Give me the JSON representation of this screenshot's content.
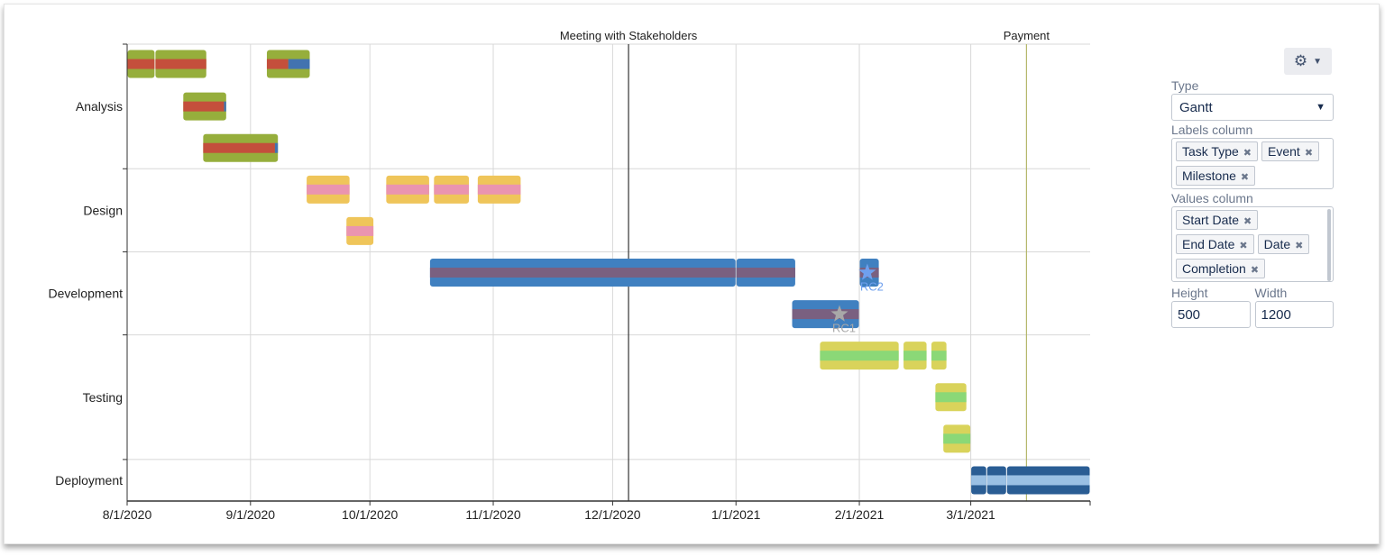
{
  "chart_data": {
    "type": "gantt",
    "xlim": [
      "2020-08-01",
      "2021-03-31"
    ],
    "x_ticks": [
      "8/1/2020",
      "9/1/2020",
      "10/1/2020",
      "11/1/2020",
      "12/1/2020",
      "1/1/2021",
      "2/1/2021",
      "3/1/2021"
    ],
    "x_tick_dates": [
      "2020-08-01",
      "2020-09-01",
      "2020-10-01",
      "2020-11-01",
      "2020-12-01",
      "2021-01-01",
      "2021-02-01",
      "2021-03-01"
    ],
    "grid": true,
    "categories": [
      {
        "name": "Analysis",
        "lanes": 3,
        "color": "#96ae3c",
        "inner": "#c44f3c",
        "remain": "#4273b0"
      },
      {
        "name": "Design",
        "lanes": 2,
        "color": "#efc55a",
        "inner": "#ea94b0",
        "remain": "#ea94b0"
      },
      {
        "name": "Development",
        "lanes": 2,
        "color": "#4080c0",
        "inner": "#7a6080",
        "remain": "#7a6080"
      },
      {
        "name": "Testing",
        "lanes": 3,
        "color": "#d9d35b",
        "inner": "#8bd877",
        "remain": "#8bd877"
      },
      {
        "name": "Deployment",
        "lanes": 1,
        "color": "#2a5d94",
        "inner": "#9ac0e4",
        "remain": "#9ac0e4"
      }
    ],
    "tasks": [
      {
        "cat": 0,
        "lane": 0,
        "start": "2020-08-01",
        "end": "2020-08-08",
        "completion": 1
      },
      {
        "cat": 0,
        "lane": 0,
        "start": "2020-08-08",
        "end": "2020-08-21",
        "completion": 1
      },
      {
        "cat": 0,
        "lane": 0,
        "start": "2020-09-05",
        "end": "2020-09-16",
        "completion": 0.5
      },
      {
        "cat": 0,
        "lane": 1,
        "start": "2020-08-15",
        "end": "2020-08-26",
        "completion": 0.95
      },
      {
        "cat": 0,
        "lane": 2,
        "start": "2020-08-20",
        "end": "2020-09-08",
        "completion": 0.96
      },
      {
        "cat": 1,
        "lane": 0,
        "start": "2020-09-15",
        "end": "2020-09-26",
        "completion": 1
      },
      {
        "cat": 1,
        "lane": 0,
        "start": "2020-10-05",
        "end": "2020-10-16",
        "completion": 1
      },
      {
        "cat": 1,
        "lane": 0,
        "start": "2020-10-17",
        "end": "2020-10-26",
        "completion": 1
      },
      {
        "cat": 1,
        "lane": 0,
        "start": "2020-10-28",
        "end": "2020-11-08",
        "completion": 1
      },
      {
        "cat": 1,
        "lane": 1,
        "start": "2020-09-25",
        "end": "2020-10-02",
        "completion": 1
      },
      {
        "cat": 2,
        "lane": 0,
        "start": "2020-10-16",
        "end": "2021-01-01",
        "completion": 1
      },
      {
        "cat": 2,
        "lane": 0,
        "start": "2021-01-01",
        "end": "2021-01-16",
        "completion": 1
      },
      {
        "cat": 2,
        "lane": 0,
        "start": "2021-02-01",
        "end": "2021-02-06",
        "completion": 1
      },
      {
        "cat": 2,
        "lane": 1,
        "start": "2021-01-15",
        "end": "2021-02-01",
        "completion": 1
      },
      {
        "cat": 3,
        "lane": 0,
        "start": "2021-01-22",
        "end": "2021-02-11",
        "completion": 1
      },
      {
        "cat": 3,
        "lane": 0,
        "start": "2021-02-12",
        "end": "2021-02-18",
        "completion": 1
      },
      {
        "cat": 3,
        "lane": 0,
        "start": "2021-02-19",
        "end": "2021-02-23",
        "completion": 1
      },
      {
        "cat": 3,
        "lane": 1,
        "start": "2021-02-20",
        "end": "2021-02-28",
        "completion": 1
      },
      {
        "cat": 3,
        "lane": 2,
        "start": "2021-02-22",
        "end": "2021-03-01",
        "completion": 1
      },
      {
        "cat": 4,
        "lane": 0,
        "start": "2021-03-01",
        "end": "2021-03-05",
        "completion": 1
      },
      {
        "cat": 4,
        "lane": 0,
        "start": "2021-03-05",
        "end": "2021-03-10",
        "completion": 1
      },
      {
        "cat": 4,
        "lane": 0,
        "start": "2021-03-10",
        "end": "2021-03-31",
        "completion": 1
      }
    ],
    "milestones": [
      {
        "label": "RC2",
        "date": "2021-02-03",
        "cat": 2,
        "lane": 0,
        "color": "#6fa0ee"
      },
      {
        "label": "RC1",
        "date": "2021-01-27",
        "cat": 2,
        "lane": 1,
        "color": "#a8a8a8"
      }
    ],
    "events": [
      {
        "label": "Meeting with Stakeholders",
        "date": "2020-12-05",
        "color": "#333333"
      },
      {
        "label": "Payment",
        "date": "2021-03-15",
        "color": "#b5b86a"
      }
    ]
  },
  "panel": {
    "gear_icon": "gear-icon",
    "type_label": "Type",
    "type_value": "Gantt",
    "labels_label": "Labels column",
    "labels_tags": [
      "Task Type",
      "Event",
      "Milestone"
    ],
    "values_label": "Values column",
    "values_tags": [
      "Start Date",
      "End Date",
      "Date",
      "Completion"
    ],
    "height_label": "Height",
    "height_value": "500",
    "width_label": "Width",
    "width_value": "1200"
  }
}
